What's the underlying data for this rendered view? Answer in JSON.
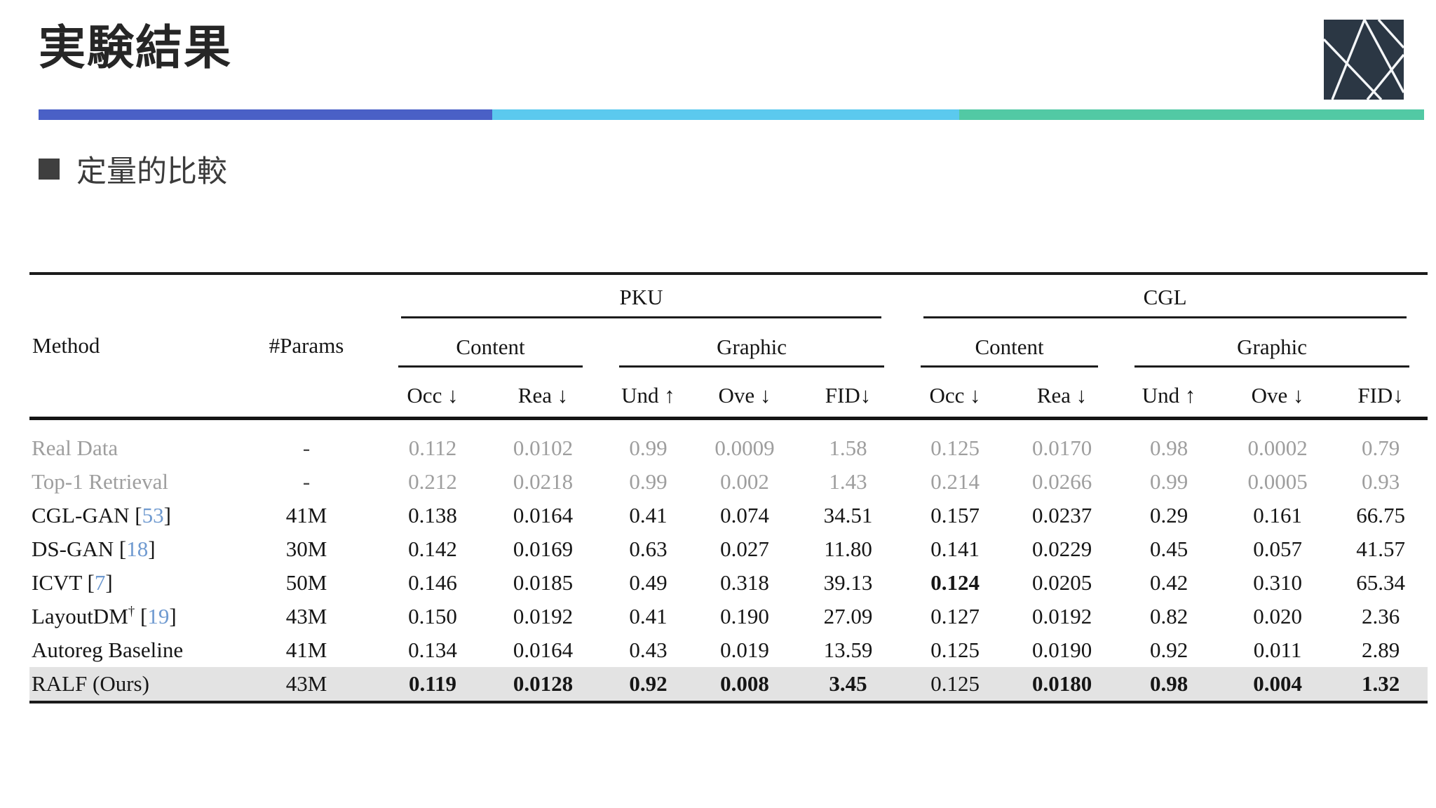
{
  "slide": {
    "title": "実験結果",
    "section_label": "定量的比較",
    "accent_colors": {
      "indigo": "#4a60c6",
      "sky": "#5bc9ee",
      "green": "#52c9a4"
    },
    "logo": {
      "name": "diagonal-lattice-logo",
      "bg": "#2b3744",
      "line_color": "#f4f6f8"
    }
  },
  "table": {
    "method_header": "Method",
    "params_header": "#Params",
    "cite_brackets": [
      "[",
      "]"
    ],
    "groups": [
      {
        "label": "PKU",
        "subgroups": [
          {
            "label": "Content",
            "metrics": [
              "Occ ↓",
              "Rea ↓"
            ]
          },
          {
            "label": "Graphic",
            "metrics": [
              "Und ↑",
              "Ove ↓",
              "FID↓"
            ]
          }
        ]
      },
      {
        "label": "CGL",
        "subgroups": [
          {
            "label": "Content",
            "metrics": [
              "Occ ↓",
              "Rea ↓"
            ]
          },
          {
            "label": "Graphic",
            "metrics": [
              "Und ↑",
              "Ove ↓",
              "FID↓"
            ]
          }
        ]
      }
    ],
    "rows": [
      {
        "name": "Real Data",
        "sup": "",
        "cite": "",
        "params": "-",
        "gray": true,
        "highlight": false,
        "values": [
          "0.112",
          "0.0102",
          "0.99",
          "0.0009",
          "1.58",
          "0.125",
          "0.0170",
          "0.98",
          "0.0002",
          "0.79"
        ],
        "bold": []
      },
      {
        "name": "Top-1 Retrieval",
        "sup": "",
        "cite": "",
        "params": "-",
        "gray": true,
        "highlight": false,
        "values": [
          "0.212",
          "0.0218",
          "0.99",
          "0.002",
          "1.43",
          "0.214",
          "0.0266",
          "0.99",
          "0.0005",
          "0.93"
        ],
        "bold": []
      },
      {
        "name": "CGL-GAN",
        "sup": "",
        "cite": "53",
        "params": "41M",
        "gray": false,
        "highlight": false,
        "values": [
          "0.138",
          "0.0164",
          "0.41",
          "0.074",
          "34.51",
          "0.157",
          "0.0237",
          "0.29",
          "0.161",
          "66.75"
        ],
        "bold": []
      },
      {
        "name": "DS-GAN",
        "sup": "",
        "cite": "18",
        "params": "30M",
        "gray": false,
        "highlight": false,
        "values": [
          "0.142",
          "0.0169",
          "0.63",
          "0.027",
          "11.80",
          "0.141",
          "0.0229",
          "0.45",
          "0.057",
          "41.57"
        ],
        "bold": []
      },
      {
        "name": "ICVT",
        "sup": "",
        "cite": "7",
        "params": "50M",
        "gray": false,
        "highlight": false,
        "values": [
          "0.146",
          "0.0185",
          "0.49",
          "0.318",
          "39.13",
          "0.124",
          "0.0205",
          "0.42",
          "0.310",
          "65.34"
        ],
        "bold": [
          5
        ]
      },
      {
        "name": "LayoutDM",
        "sup": "†",
        "cite": "19",
        "params": "43M",
        "gray": false,
        "highlight": false,
        "values": [
          "0.150",
          "0.0192",
          "0.41",
          "0.190",
          "27.09",
          "0.127",
          "0.0192",
          "0.82",
          "0.020",
          "2.36"
        ],
        "bold": []
      },
      {
        "name": "Autoreg Baseline",
        "sup": "",
        "cite": "",
        "params": "41M",
        "gray": false,
        "highlight": false,
        "values": [
          "0.134",
          "0.0164",
          "0.43",
          "0.019",
          "13.59",
          "0.125",
          "0.0190",
          "0.92",
          "0.011",
          "2.89"
        ],
        "bold": []
      },
      {
        "name": "RALF (Ours)",
        "sup": "",
        "cite": "",
        "params": "43M",
        "gray": false,
        "highlight": true,
        "values": [
          "0.119",
          "0.0128",
          "0.92",
          "0.008",
          "3.45",
          "0.125",
          "0.0180",
          "0.98",
          "0.004",
          "1.32"
        ],
        "bold": [
          0,
          1,
          2,
          3,
          4,
          6,
          7,
          8,
          9
        ]
      }
    ]
  }
}
